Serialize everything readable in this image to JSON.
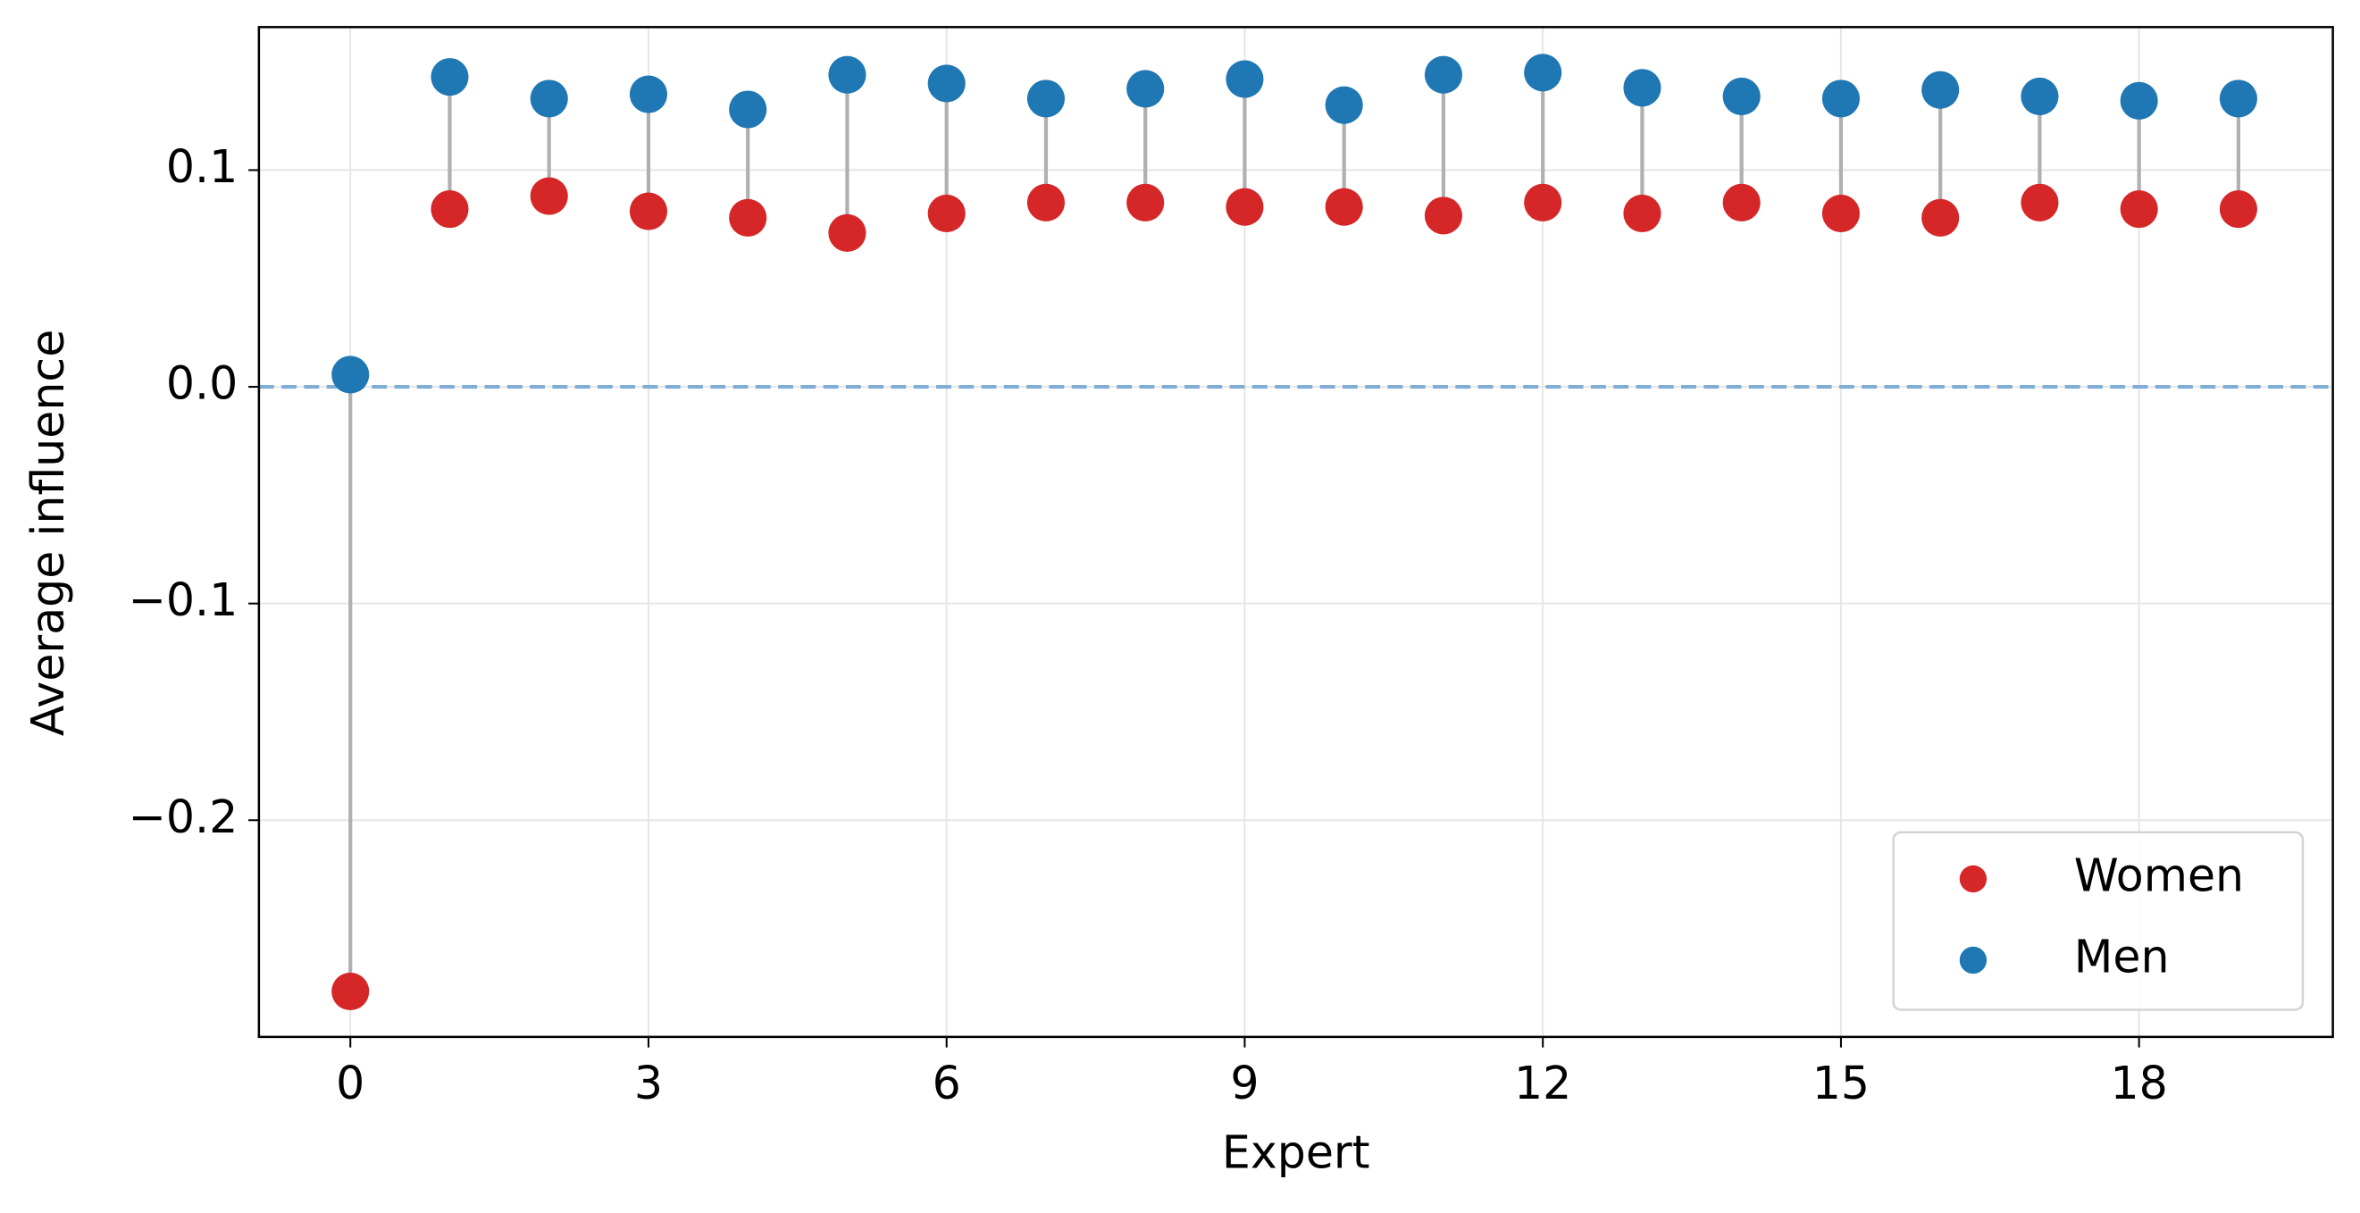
{
  "chart_data": {
    "type": "dumbbell",
    "x_label": "Expert",
    "y_label": "Average influence",
    "x": [
      0,
      1,
      2,
      3,
      4,
      5,
      6,
      7,
      8,
      9,
      10,
      11,
      12,
      13,
      14,
      15,
      16,
      17,
      18,
      19
    ],
    "series": [
      {
        "name": "Women",
        "color": "#d62728",
        "values": [
          -0.279,
          0.082,
          0.088,
          0.081,
          0.078,
          0.071,
          0.08,
          0.085,
          0.085,
          0.083,
          0.083,
          0.079,
          0.085,
          0.08,
          0.085,
          0.08,
          0.078,
          0.085,
          0.082,
          0.082
        ]
      },
      {
        "name": "Men",
        "color": "#1f77b4",
        "values": [
          0.0056,
          0.143,
          0.133,
          0.135,
          0.128,
          0.144,
          0.14,
          0.133,
          0.1375,
          0.142,
          0.13,
          0.144,
          0.145,
          0.138,
          0.134,
          0.133,
          0.137,
          0.134,
          0.132,
          0.133
        ]
      }
    ],
    "connector_color": "#b0b0b0",
    "reference_line": 0,
    "reference_color": "#7fadd4",
    "xlim": [
      -0.92,
      19.95
    ],
    "xticks": [
      0,
      3,
      6,
      9,
      12,
      15,
      18
    ],
    "ylim": [
      -0.3,
      0.166
    ],
    "yticks": [
      {
        "value": -0.2,
        "label": "−0.2"
      },
      {
        "value": -0.1,
        "label": "−0.1"
      },
      {
        "value": 0,
        "label": "0.0"
      },
      0.1
    ],
    "grid": true,
    "legend": "lower right"
  }
}
